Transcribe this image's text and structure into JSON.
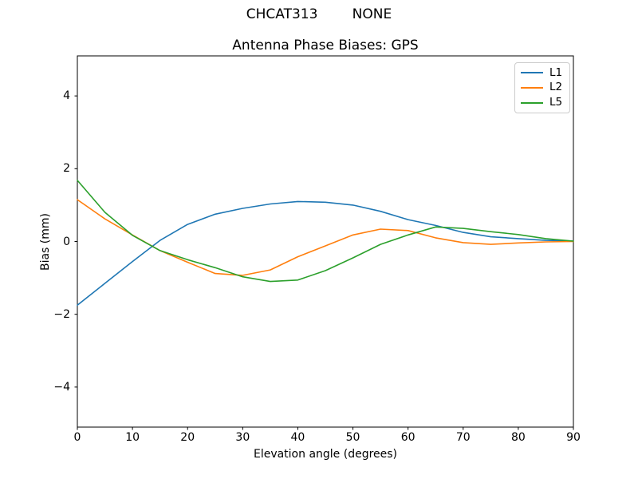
{
  "figure": {
    "suptitle": "CHCAT313        NONE"
  },
  "chart_data": {
    "type": "line",
    "title": "Antenna Phase Biases: GPS",
    "xlabel": "Elevation angle (degrees)",
    "ylabel": "Bias (mm)",
    "xlim": [
      0,
      90
    ],
    "ylim": [
      -5.1,
      5.1
    ],
    "grid": false,
    "legend_position": "upper right",
    "x_ticks": [
      0,
      10,
      20,
      30,
      40,
      50,
      60,
      70,
      80,
      90
    ],
    "x_tick_labels": [
      "0",
      "10",
      "20",
      "30",
      "40",
      "50",
      "60",
      "70",
      "80",
      "90"
    ],
    "y_ticks": [
      -4,
      -2,
      0,
      2,
      4
    ],
    "y_tick_labels": [
      "−4",
      "−2",
      "0",
      "2",
      "4"
    ],
    "x": [
      0,
      5,
      10,
      15,
      20,
      25,
      30,
      35,
      40,
      45,
      50,
      55,
      60,
      65,
      70,
      75,
      80,
      85,
      90
    ],
    "series": [
      {
        "name": "L1",
        "color": "#1f77b4",
        "values": [
          -1.75,
          -1.15,
          -0.55,
          0.03,
          0.47,
          0.75,
          0.91,
          1.03,
          1.1,
          1.08,
          1.0,
          0.83,
          0.6,
          0.44,
          0.25,
          0.13,
          0.08,
          0.03,
          0.01
        ]
      },
      {
        "name": "L2",
        "color": "#ff7f0e",
        "values": [
          1.15,
          0.62,
          0.18,
          -0.25,
          -0.57,
          -0.88,
          -0.93,
          -0.78,
          -0.42,
          -0.12,
          0.18,
          0.34,
          0.3,
          0.1,
          -0.03,
          -0.08,
          -0.04,
          -0.01,
          0.0
        ]
      },
      {
        "name": "L5",
        "color": "#2ca02c",
        "values": [
          1.68,
          0.8,
          0.17,
          -0.25,
          -0.5,
          -0.72,
          -0.97,
          -1.1,
          -1.06,
          -0.8,
          -0.45,
          -0.08,
          0.18,
          0.4,
          0.36,
          0.27,
          0.19,
          0.08,
          0.01
        ]
      }
    ]
  }
}
